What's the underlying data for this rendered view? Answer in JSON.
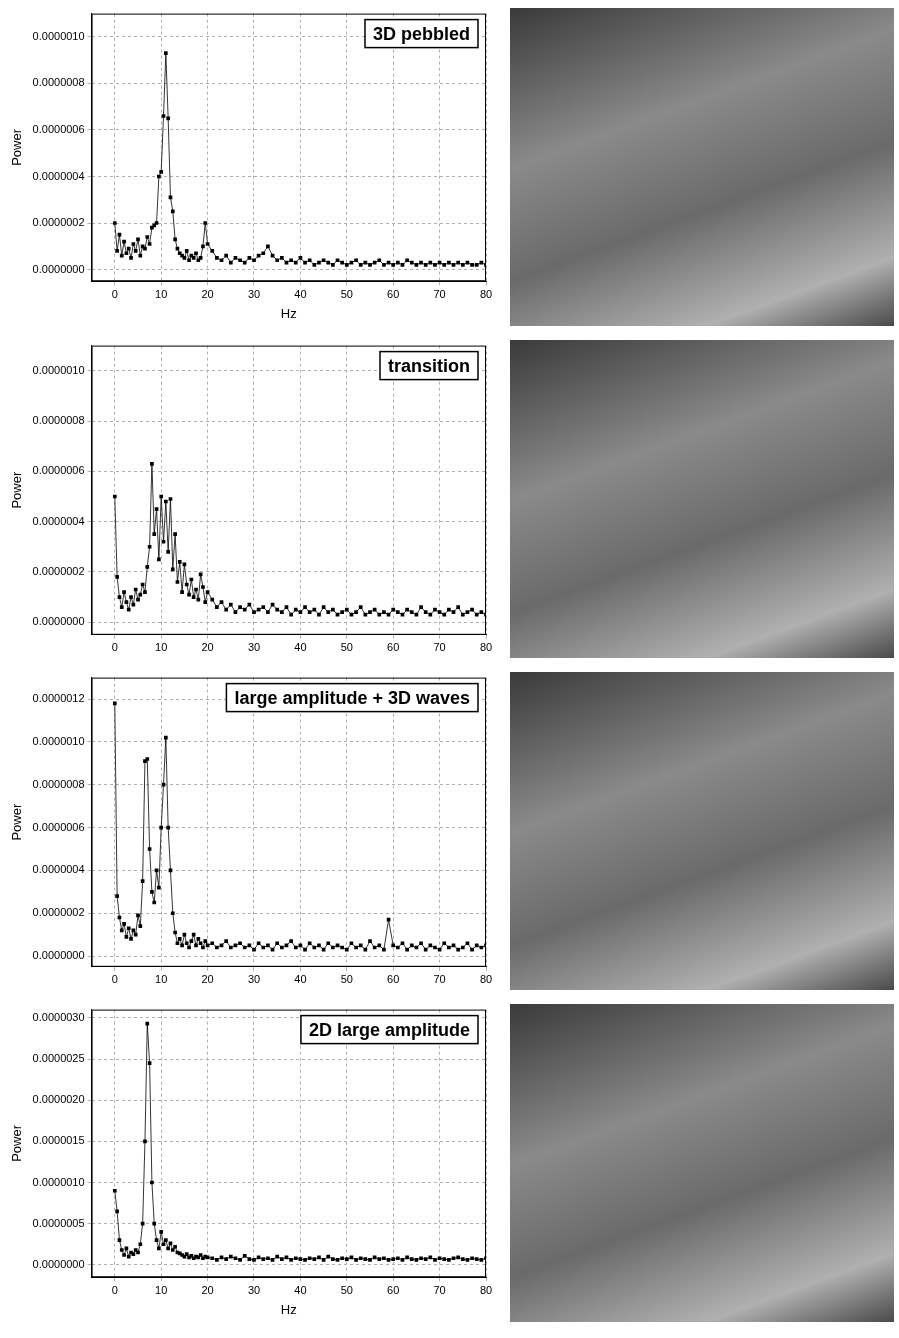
{
  "chart_data": [
    {
      "type": "line",
      "title": "3D pebbled",
      "x_label": "Hz",
      "y_label": "Power",
      "marker": "square",
      "line_style": "solid",
      "color": "#000000",
      "grid": true,
      "xlim": [
        -5,
        80
      ],
      "xticks": [
        0,
        10,
        20,
        30,
        40,
        50,
        60,
        70,
        80
      ],
      "ylim": [
        -5e-08,
        1.1e-06
      ],
      "yticks": [
        {
          "value": 0,
          "label": "0.0000000"
        },
        {
          "value": 2e-07,
          "label": "0.0000002"
        },
        {
          "value": 4e-07,
          "label": "0.0000004"
        },
        {
          "value": 6e-07,
          "label": "0.0000006"
        },
        {
          "value": 8e-07,
          "label": "0.0000008"
        },
        {
          "value": 1e-06,
          "label": "0.0000010"
        }
      ],
      "x": [
        0,
        0.5,
        1,
        1.5,
        2,
        2.5,
        3,
        3.5,
        4,
        4.5,
        5,
        5.5,
        6,
        6.5,
        7,
        7.5,
        8,
        8.5,
        9,
        9.5,
        10,
        10.5,
        11,
        11.5,
        12,
        12.5,
        13,
        13.5,
        14,
        14.5,
        15,
        15.5,
        16,
        16.5,
        17,
        17.5,
        18,
        18.5,
        19,
        19.5,
        20,
        21,
        22,
        23,
        24,
        25,
        26,
        27,
        28,
        29,
        30,
        31,
        32,
        33,
        34,
        35,
        36,
        37,
        38,
        39,
        40,
        41,
        42,
        43,
        44,
        45,
        46,
        47,
        48,
        49,
        50,
        51,
        52,
        53,
        54,
        55,
        56,
        57,
        58,
        59,
        60,
        61,
        62,
        63,
        64,
        65,
        66,
        67,
        68,
        69,
        70,
        71,
        72,
        73,
        74,
        75,
        76,
        77,
        78,
        79,
        80
      ],
      "values": [
        2e-07,
        8e-08,
        1.5e-07,
        6e-08,
        1.2e-07,
        7e-08,
        9e-08,
        5e-08,
        1.1e-07,
        8e-08,
        1.3e-07,
        6e-08,
        1e-07,
        9e-08,
        1.4e-07,
        1.1e-07,
        1.8e-07,
        1.9e-07,
        2e-07,
        4e-07,
        4.2e-07,
        6.6e-07,
        9.3e-07,
        6.5e-07,
        3.1e-07,
        2.5e-07,
        1.3e-07,
        9e-08,
        7e-08,
        6e-08,
        5e-08,
        8e-08,
        4e-08,
        6e-08,
        5e-08,
        7e-08,
        4e-08,
        5e-08,
        1e-07,
        2e-07,
        1.1e-07,
        8e-08,
        5e-08,
        4e-08,
        6e-08,
        3e-08,
        5e-08,
        4e-08,
        3e-08,
        5e-08,
        4e-08,
        6e-08,
        7e-08,
        1e-07,
        6e-08,
        4e-08,
        5e-08,
        3e-08,
        4e-08,
        3e-08,
        5e-08,
        3e-08,
        4e-08,
        2e-08,
        3e-08,
        4e-08,
        3e-08,
        2e-08,
        4e-08,
        3e-08,
        2e-08,
        3e-08,
        4e-08,
        2e-08,
        3e-08,
        2e-08,
        3e-08,
        4e-08,
        2e-08,
        3e-08,
        2e-08,
        3e-08,
        2e-08,
        4e-08,
        3e-08,
        2e-08,
        3e-08,
        2e-08,
        3e-08,
        2e-08,
        3e-08,
        2e-08,
        3e-08,
        2e-08,
        3e-08,
        2e-08,
        3e-08,
        2e-08,
        2e-08,
        3e-08,
        2e-08
      ]
    },
    {
      "type": "line",
      "title": "transition",
      "y_label": "Power",
      "marker": "square",
      "line_style": "solid",
      "color": "#000000",
      "grid": true,
      "xlim": [
        -5,
        80
      ],
      "xticks": [
        0,
        10,
        20,
        30,
        40,
        50,
        60,
        70,
        80
      ],
      "ylim": [
        -5e-08,
        1.1e-06
      ],
      "yticks": [
        {
          "value": 0,
          "label": "0.0000000"
        },
        {
          "value": 2e-07,
          "label": "0.0000002"
        },
        {
          "value": 4e-07,
          "label": "0.0000004"
        },
        {
          "value": 6e-07,
          "label": "0.0000006"
        },
        {
          "value": 8e-07,
          "label": "0.0000008"
        },
        {
          "value": 1e-06,
          "label": "0.0000010"
        }
      ],
      "x": [
        0,
        0.5,
        1,
        1.5,
        2,
        2.5,
        3,
        3.5,
        4,
        4.5,
        5,
        5.5,
        6,
        6.5,
        7,
        7.5,
        8,
        8.5,
        9,
        9.5,
        10,
        10.5,
        11,
        11.5,
        12,
        12.5,
        13,
        13.5,
        14,
        14.5,
        15,
        15.5,
        16,
        16.5,
        17,
        17.5,
        18,
        18.5,
        19,
        19.5,
        20,
        21,
        22,
        23,
        24,
        25,
        26,
        27,
        28,
        29,
        30,
        31,
        32,
        33,
        34,
        35,
        36,
        37,
        38,
        39,
        40,
        41,
        42,
        43,
        44,
        45,
        46,
        47,
        48,
        49,
        50,
        51,
        52,
        53,
        54,
        55,
        56,
        57,
        58,
        59,
        60,
        61,
        62,
        63,
        64,
        65,
        66,
        67,
        68,
        69,
        70,
        71,
        72,
        73,
        74,
        75,
        76,
        77,
        78,
        79,
        80
      ],
      "values": [
        5e-07,
        1.8e-07,
        1e-07,
        6e-08,
        1.2e-07,
        8e-08,
        5e-08,
        1e-07,
        7e-08,
        1.3e-07,
        9e-08,
        1.1e-07,
        1.5e-07,
        1.2e-07,
        2.2e-07,
        3e-07,
        6.3e-07,
        3.5e-07,
        4.5e-07,
        2.5e-07,
        5e-07,
        3.2e-07,
        4.8e-07,
        2.8e-07,
        4.9e-07,
        2.1e-07,
        3.5e-07,
        1.6e-07,
        2.4e-07,
        1.2e-07,
        2.3e-07,
        1.5e-07,
        1.1e-07,
        1.7e-07,
        1e-07,
        1.3e-07,
        9e-08,
        1.9e-07,
        1.4e-07,
        8e-08,
        1.2e-07,
        9e-08,
        6e-08,
        8e-08,
        5e-08,
        7e-08,
        4e-08,
        6e-08,
        5e-08,
        7e-08,
        4e-08,
        5e-08,
        6e-08,
        4e-08,
        7e-08,
        5e-08,
        4e-08,
        6e-08,
        3e-08,
        5e-08,
        4e-08,
        6e-08,
        4e-08,
        5e-08,
        3e-08,
        6e-08,
        4e-08,
        5e-08,
        3e-08,
        4e-08,
        5e-08,
        3e-08,
        4e-08,
        6e-08,
        3e-08,
        4e-08,
        5e-08,
        3e-08,
        4e-08,
        3e-08,
        5e-08,
        4e-08,
        3e-08,
        5e-08,
        4e-08,
        3e-08,
        6e-08,
        4e-08,
        3e-08,
        5e-08,
        4e-08,
        3e-08,
        5e-08,
        4e-08,
        6e-08,
        3e-08,
        4e-08,
        5e-08,
        3e-08,
        4e-08,
        3e-08
      ]
    },
    {
      "type": "line",
      "title": "large amplitude + 3D waves",
      "y_label": "Power",
      "marker": "square",
      "line_style": "solid",
      "color": "#000000",
      "grid": true,
      "xlim": [
        -5,
        80
      ],
      "xticks": [
        0,
        10,
        20,
        30,
        40,
        50,
        60,
        70,
        80
      ],
      "ylim": [
        -5e-08,
        1.3e-06
      ],
      "yticks": [
        {
          "value": 0,
          "label": "0.0000000"
        },
        {
          "value": 2e-07,
          "label": "0.0000002"
        },
        {
          "value": 4e-07,
          "label": "0.0000004"
        },
        {
          "value": 6e-07,
          "label": "0.0000006"
        },
        {
          "value": 8e-07,
          "label": "0.0000008"
        },
        {
          "value": 1e-06,
          "label": "0.0000010"
        },
        {
          "value": 1.2e-06,
          "label": "0.0000012"
        }
      ],
      "x": [
        0,
        0.5,
        1,
        1.5,
        2,
        2.5,
        3,
        3.5,
        4,
        4.5,
        5,
        5.5,
        6,
        6.5,
        7,
        7.5,
        8,
        8.5,
        9,
        9.5,
        10,
        10.5,
        11,
        11.5,
        12,
        12.5,
        13,
        13.5,
        14,
        14.5,
        15,
        15.5,
        16,
        16.5,
        17,
        17.5,
        18,
        18.5,
        19,
        19.5,
        20,
        21,
        22,
        23,
        24,
        25,
        26,
        27,
        28,
        29,
        30,
        31,
        32,
        33,
        34,
        35,
        36,
        37,
        38,
        39,
        40,
        41,
        42,
        43,
        44,
        45,
        46,
        47,
        48,
        49,
        50,
        51,
        52,
        53,
        54,
        55,
        56,
        57,
        58,
        59,
        60,
        61,
        62,
        63,
        64,
        65,
        66,
        67,
        68,
        69,
        70,
        71,
        72,
        73,
        74,
        75,
        76,
        77,
        78,
        79,
        80
      ],
      "values": [
        1.18e-06,
        2.8e-07,
        1.8e-07,
        1.2e-07,
        1.5e-07,
        9e-08,
        1.3e-07,
        8e-08,
        1.2e-07,
        1e-07,
        1.9e-07,
        1.4e-07,
        3.5e-07,
        9.1e-07,
        9.2e-07,
        5e-07,
        3e-07,
        2.5e-07,
        4e-07,
        3.2e-07,
        6e-07,
        8e-07,
        1.02e-06,
        6e-07,
        4e-07,
        2e-07,
        1.1e-07,
        6e-08,
        8e-08,
        5e-08,
        1e-07,
        6e-08,
        4e-08,
        7e-08,
        1e-07,
        5e-08,
        8e-08,
        6e-08,
        4e-08,
        7e-08,
        5e-08,
        6e-08,
        4e-08,
        5e-08,
        7e-08,
        4e-08,
        5e-08,
        6e-08,
        4e-08,
        5e-08,
        3e-08,
        6e-08,
        4e-08,
        5e-08,
        3e-08,
        6e-08,
        4e-08,
        5e-08,
        7e-08,
        4e-08,
        5e-08,
        3e-08,
        6e-08,
        4e-08,
        5e-08,
        3e-08,
        6e-08,
        4e-08,
        5e-08,
        4e-08,
        3e-08,
        6e-08,
        4e-08,
        5e-08,
        3e-08,
        7e-08,
        4e-08,
        5e-08,
        3e-08,
        1.7e-07,
        5e-08,
        4e-08,
        6e-08,
        3e-08,
        5e-08,
        4e-08,
        6e-08,
        3e-08,
        5e-08,
        4e-08,
        3e-08,
        6e-08,
        4e-08,
        5e-08,
        3e-08,
        4e-08,
        6e-08,
        3e-08,
        5e-08,
        4e-08,
        5e-08
      ]
    },
    {
      "type": "line",
      "title": "2D large amplitude",
      "x_label": "Hz",
      "y_label": "Power",
      "marker": "square",
      "line_style": "solid",
      "color": "#000000",
      "grid": true,
      "xlim": [
        -5,
        80
      ],
      "xticks": [
        0,
        10,
        20,
        30,
        40,
        50,
        60,
        70,
        80
      ],
      "ylim": [
        -1.5e-07,
        3.1e-06
      ],
      "yticks": [
        {
          "value": 0,
          "label": "0.0000000"
        },
        {
          "value": 5e-07,
          "label": "0.0000005"
        },
        {
          "value": 1e-06,
          "label": "0.0000010"
        },
        {
          "value": 1.5e-06,
          "label": "0.0000015"
        },
        {
          "value": 2e-06,
          "label": "0.0000020"
        },
        {
          "value": 2.5e-06,
          "label": "0.0000025"
        },
        {
          "value": 3e-06,
          "label": "0.0000030"
        }
      ],
      "x": [
        0,
        0.5,
        1,
        1.5,
        2,
        2.5,
        3,
        3.5,
        4,
        4.5,
        5,
        5.5,
        6,
        6.5,
        7,
        7.5,
        8,
        8.5,
        9,
        9.5,
        10,
        10.5,
        11,
        11.5,
        12,
        12.5,
        13,
        13.5,
        14,
        14.5,
        15,
        15.5,
        16,
        16.5,
        17,
        17.5,
        18,
        18.5,
        19,
        19.5,
        20,
        21,
        22,
        23,
        24,
        25,
        26,
        27,
        28,
        29,
        30,
        31,
        32,
        33,
        34,
        35,
        36,
        37,
        38,
        39,
        40,
        41,
        42,
        43,
        44,
        45,
        46,
        47,
        48,
        49,
        50,
        51,
        52,
        53,
        54,
        55,
        56,
        57,
        58,
        59,
        60,
        61,
        62,
        63,
        64,
        65,
        66,
        67,
        68,
        69,
        70,
        71,
        72,
        73,
        74,
        75,
        76,
        77,
        78,
        79,
        80
      ],
      "values": [
        9e-07,
        6.5e-07,
        3e-07,
        1.8e-07,
        1.2e-07,
        2e-07,
        1e-07,
        1.5e-07,
        1.3e-07,
        1.8e-07,
        1.5e-07,
        2.5e-07,
        5e-07,
        1.5e-06,
        2.93e-06,
        2.45e-06,
        1e-06,
        5e-07,
        3e-07,
        2e-07,
        4e-07,
        2.5e-07,
        3e-07,
        2e-07,
        2.6e-07,
        1.8e-07,
        2.2e-07,
        1.5e-07,
        1.4e-07,
        1.2e-07,
        1e-07,
        1.3e-07,
        9e-08,
        1.1e-07,
        8e-08,
        1e-07,
        9e-08,
        1.2e-07,
        8e-08,
        1e-07,
        9e-08,
        8e-08,
        6e-08,
        9e-08,
        7e-08,
        1e-07,
        8e-08,
        6e-08,
        1.1e-07,
        7e-08,
        6e-08,
        9e-08,
        7e-08,
        8e-08,
        6e-08,
        1e-07,
        7e-08,
        9e-08,
        6e-08,
        8e-08,
        7e-08,
        6e-08,
        8e-08,
        7e-08,
        9e-08,
        6e-08,
        1e-07,
        7e-08,
        6e-08,
        8e-08,
        7e-08,
        9e-08,
        6e-08,
        8e-08,
        7e-08,
        6e-08,
        9e-08,
        7e-08,
        8e-08,
        6e-08,
        7e-08,
        8e-08,
        6e-08,
        9e-08,
        7e-08,
        6e-08,
        8e-08,
        7e-08,
        9e-08,
        6e-08,
        8e-08,
        7e-08,
        6e-08,
        8e-08,
        9e-08,
        7e-08,
        6e-08,
        8e-08,
        7e-08,
        6e-08,
        8e-08
      ]
    }
  ]
}
